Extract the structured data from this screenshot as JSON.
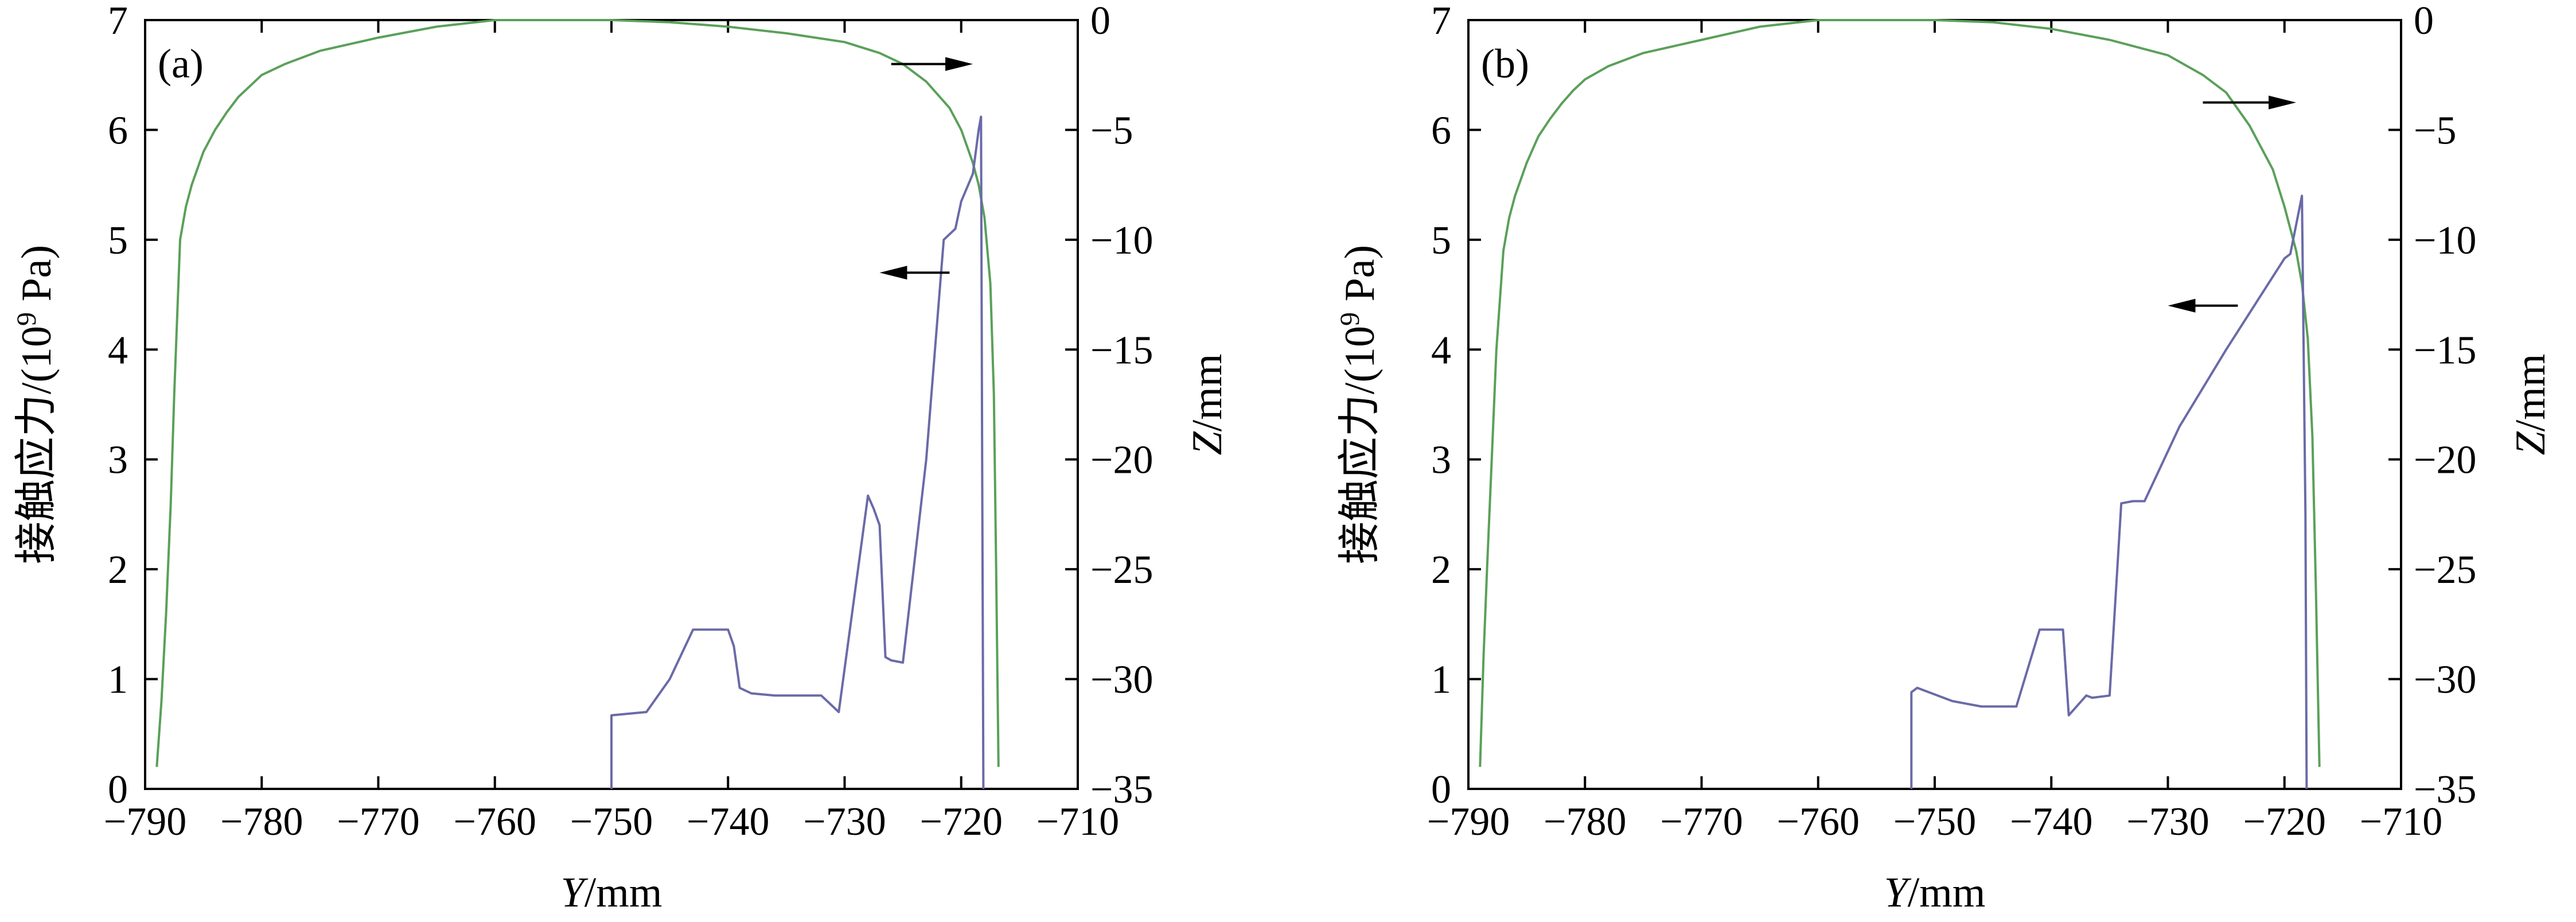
{
  "chart_data": [
    {
      "type": "line",
      "panel_label": "(a)",
      "xlabel_italic": "Y",
      "xlabel_unit": "/mm",
      "ylabel_left": "接触应力/(10",
      "ylabel_left_sup": "9",
      "ylabel_left_tail": " Pa)",
      "ylabel_right_italic": "Z",
      "ylabel_right_unit": "/mm",
      "xlim": [
        -790,
        -710
      ],
      "ylim_left": [
        0,
        7
      ],
      "ylim_right": [
        -35,
        0
      ],
      "x_ticks": [
        "−790",
        "−780",
        "−770",
        "−760",
        "−750",
        "−740",
        "−730",
        "−720",
        "−710"
      ],
      "y_left_ticks": [
        "0",
        "1",
        "2",
        "3",
        "4",
        "5",
        "6",
        "7"
      ],
      "y_right_ticks": [
        "−35",
        "−30",
        "−25",
        "−20",
        "−15",
        "−10",
        "−5",
        "0"
      ],
      "series": [
        {
          "axis": "right",
          "color": "#5aa05a",
          "x": [
            -789,
            -788.6,
            -788.2,
            -787.8,
            -787.5,
            -787,
            -786.5,
            -786,
            -785,
            -784,
            -783,
            -782,
            -781,
            -780,
            -778,
            -775,
            -770,
            -765,
            -760,
            -750,
            -745,
            -740,
            -735,
            -730,
            -727,
            -725,
            -723,
            -721,
            -720,
            -719,
            -718.5,
            -718,
            -717.5,
            -717.2,
            -717,
            -716.8
          ],
          "y": [
            -34,
            -31,
            -27,
            -22,
            -17,
            -10,
            -8.5,
            -7.5,
            -6,
            -5,
            -4.2,
            -3.5,
            -3,
            -2.5,
            -2,
            -1.4,
            -0.8,
            -0.3,
            0,
            0,
            -0.1,
            -0.3,
            -0.6,
            -1,
            -1.5,
            -2,
            -2.8,
            -4,
            -5,
            -6.5,
            -7.5,
            -9,
            -12,
            -17,
            -25,
            -34
          ]
        },
        {
          "axis": "left",
          "color": "#6a6aa8",
          "x": [
            -750,
            -750,
            -747,
            -745,
            -743,
            -741,
            -740,
            -739.5,
            -739,
            -738,
            -736,
            -734,
            -732,
            -730.5,
            -728,
            -727.5,
            -727,
            -726.5,
            -726,
            -725,
            -723,
            -721.5,
            -721,
            -720.5,
            -720,
            -719,
            -718.5,
            -718.3,
            -718.2,
            -718.1
          ],
          "y": [
            0,
            0.67,
            0.7,
            1.0,
            1.45,
            1.45,
            1.45,
            1.3,
            0.92,
            0.87,
            0.85,
            0.85,
            0.85,
            0.7,
            2.67,
            2.55,
            2.4,
            1.2,
            1.17,
            1.15,
            3.0,
            5.0,
            5.05,
            5.1,
            5.35,
            5.6,
            6.0,
            6.12,
            3.0,
            0
          ]
        }
      ],
      "annotations": [
        {
          "type": "arrow",
          "direction": "right",
          "points_to": "right-axis",
          "x_from": -726,
          "x_to": -719,
          "y_left": 6.6
        },
        {
          "type": "arrow",
          "direction": "left",
          "points_to": "left-axis",
          "x_from": -721,
          "x_to": -727,
          "y_left": 4.7
        }
      ]
    },
    {
      "type": "line",
      "panel_label": "(b)",
      "xlabel_italic": "Y",
      "xlabel_unit": "/mm",
      "ylabel_left": "接触应力/(10",
      "ylabel_left_sup": "9",
      "ylabel_left_tail": " Pa)",
      "ylabel_right_italic": "Z",
      "ylabel_right_unit": "/mm",
      "xlim": [
        -790,
        -710
      ],
      "ylim_left": [
        0,
        7
      ],
      "ylim_right": [
        -35,
        0
      ],
      "x_ticks": [
        "−790",
        "−780",
        "−770",
        "−760",
        "−750",
        "−740",
        "−730",
        "−720",
        "−710"
      ],
      "y_left_ticks": [
        "0",
        "1",
        "2",
        "3",
        "4",
        "5",
        "6",
        "7"
      ],
      "y_right_ticks": [
        "−35",
        "−30",
        "−25",
        "−20",
        "−15",
        "−10",
        "−5",
        "0"
      ],
      "series": [
        {
          "axis": "right",
          "color": "#5aa05a",
          "x": [
            -789,
            -788.7,
            -788.4,
            -788,
            -787.6,
            -787,
            -786.5,
            -786,
            -785,
            -784,
            -783,
            -782,
            -781,
            -780,
            -778,
            -775,
            -770,
            -765,
            -760,
            -750,
            -745,
            -740,
            -735,
            -730,
            -727,
            -725,
            -723,
            -721,
            -720,
            -719,
            -718.5,
            -718,
            -717.6,
            -717.3,
            -717
          ],
          "y": [
            -34,
            -29,
            -25,
            -20,
            -15,
            -10.5,
            -9,
            -8,
            -6.5,
            -5.3,
            -4.5,
            -3.8,
            -3.2,
            -2.7,
            -2.1,
            -1.5,
            -0.9,
            -0.3,
            0,
            0,
            -0.1,
            -0.4,
            -0.9,
            -1.6,
            -2.5,
            -3.3,
            -4.8,
            -6.8,
            -8.5,
            -10.5,
            -12,
            -14.5,
            -19,
            -26,
            -34
          ]
        },
        {
          "axis": "left",
          "color": "#6a6aa8",
          "x": [
            -752,
            -752,
            -751.5,
            -748.5,
            -746,
            -745,
            -743,
            -741,
            -740,
            -739,
            -738.5,
            -737,
            -736.5,
            -735,
            -734,
            -733,
            -732,
            -729,
            -725,
            -720,
            -719.5,
            -718.5,
            -718.2,
            -718.1
          ],
          "y": [
            0,
            0.88,
            0.92,
            0.8,
            0.75,
            0.75,
            0.75,
            1.45,
            1.45,
            1.45,
            0.67,
            0.85,
            0.83,
            0.85,
            2.6,
            2.62,
            2.62,
            3.3,
            4.0,
            4.83,
            4.87,
            5.4,
            2.5,
            0
          ]
        }
      ],
      "annotations": [
        {
          "type": "arrow",
          "direction": "right",
          "points_to": "right-axis",
          "x_from": -727,
          "x_to": -719,
          "y_left": 6.25
        },
        {
          "type": "arrow",
          "direction": "left",
          "points_to": "left-axis",
          "x_from": -724,
          "x_to": -730,
          "y_left": 4.4
        }
      ]
    }
  ]
}
